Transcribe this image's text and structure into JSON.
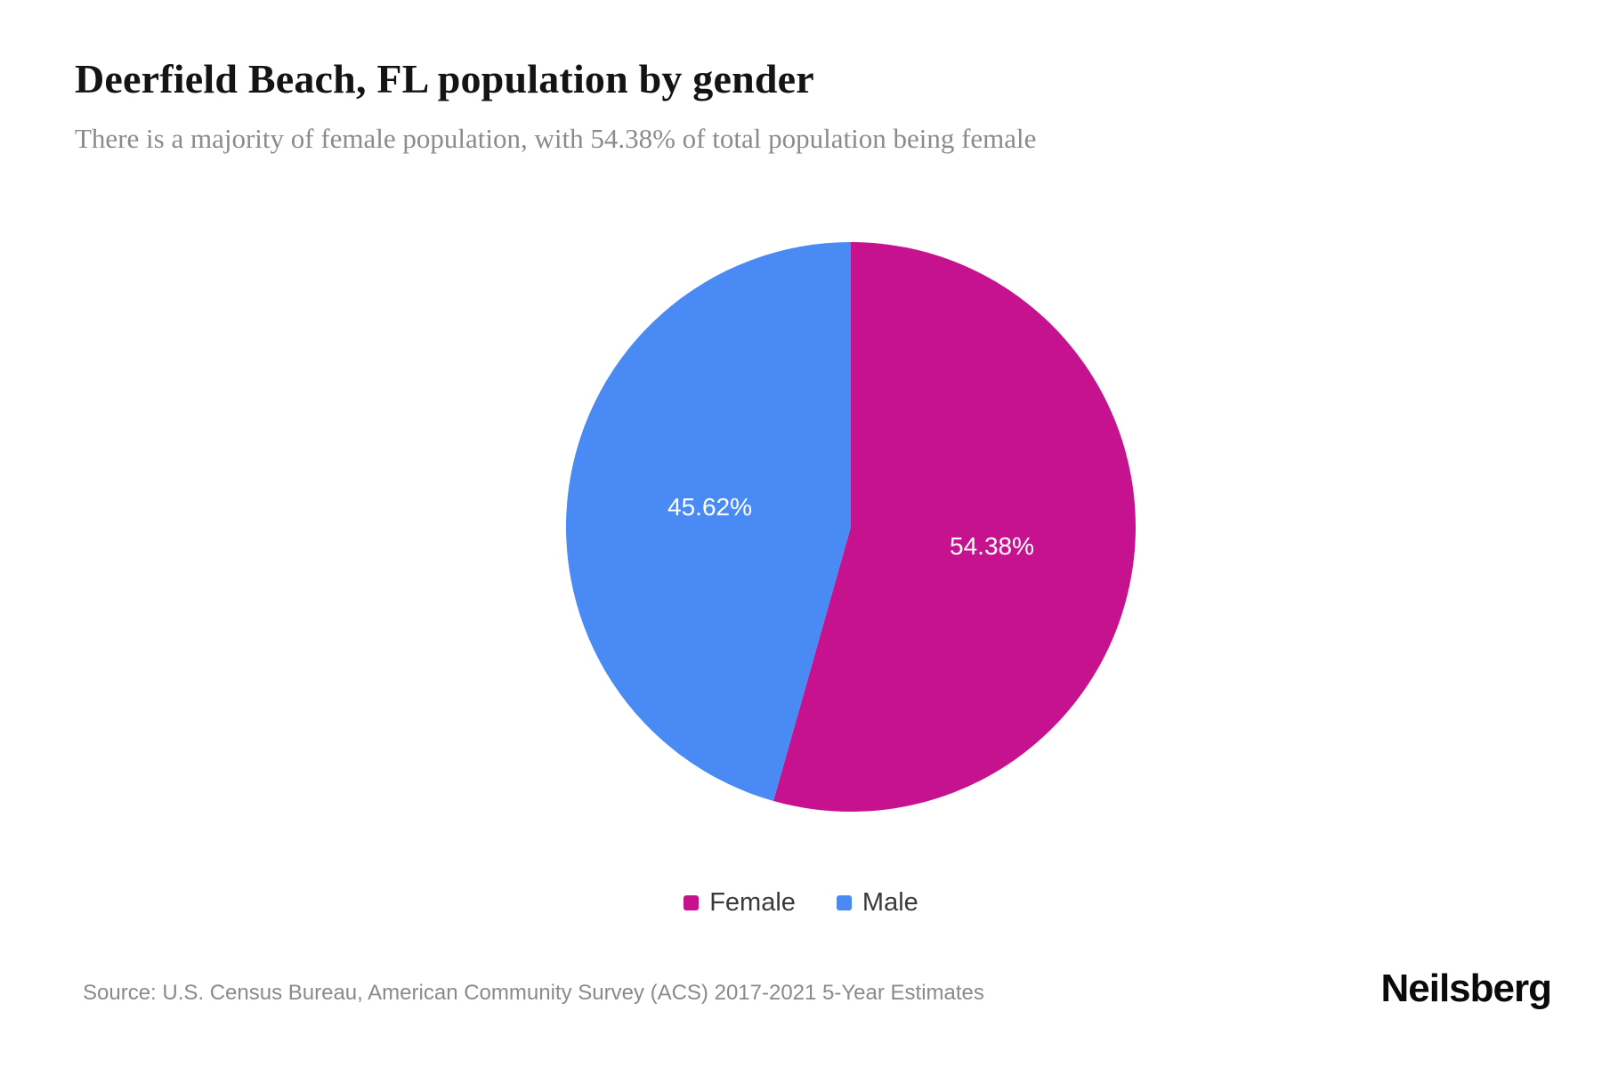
{
  "header": {
    "title": "Deerfield Beach, FL population by gender",
    "subtitle": "There is a majority of female population, with 54.38% of total population being female"
  },
  "chart_data": {
    "type": "pie",
    "title": "Deerfield Beach, FL population by gender",
    "categories": [
      "Female",
      "Male"
    ],
    "values": [
      54.38,
      45.62
    ],
    "slice_labels": [
      "54.38%",
      "45.62%"
    ],
    "colors": [
      "#c6128e",
      "#4a8af4"
    ],
    "start_angle_deg": -90,
    "direction": "clockwise",
    "legend_position": "bottom"
  },
  "legend": {
    "items": [
      {
        "label": "Female",
        "color": "#c6128e"
      },
      {
        "label": "Male",
        "color": "#4a8af4"
      }
    ]
  },
  "footer": {
    "source": "Source: U.S. Census Bureau, American Community Survey (ACS) 2017-2021 5-Year Estimates",
    "brand": "Neilsberg"
  }
}
